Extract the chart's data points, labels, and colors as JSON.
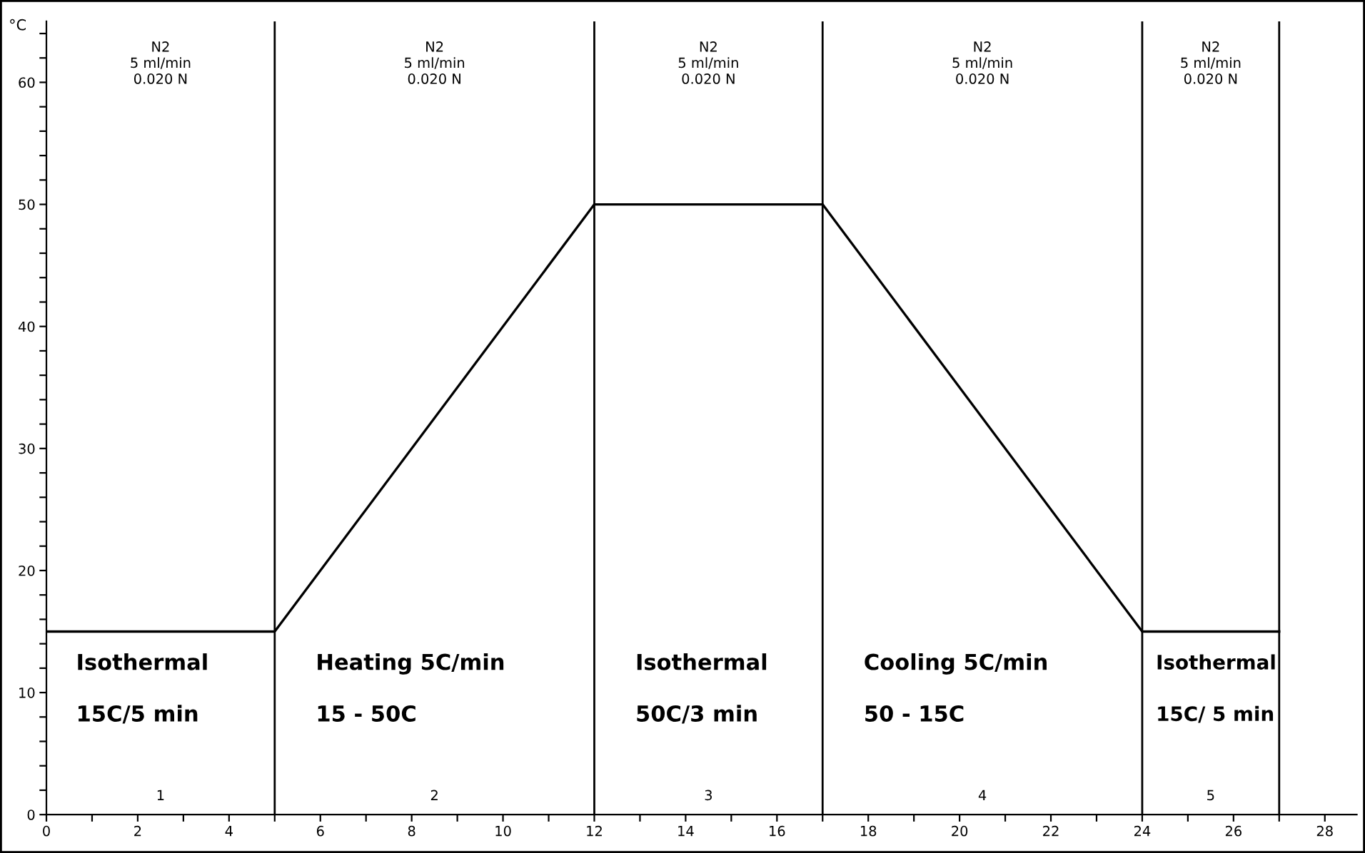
{
  "chart_data": {
    "type": "line",
    "ylabel": "°C",
    "x": [
      0,
      5,
      12,
      17,
      24,
      27
    ],
    "series": [
      {
        "color": "#000000",
        "values": [
          15,
          15,
          50,
          50,
          15,
          15
        ]
      }
    ],
    "xlim": [
      0,
      28.7
    ],
    "ylim": [
      0,
      65
    ],
    "xticks": [
      0,
      {
        "value": 1,
        "label": null
      },
      2,
      {
        "value": 3,
        "label": null
      },
      4,
      {
        "value": 5,
        "label": null
      },
      6,
      {
        "value": 7,
        "label": null
      },
      8,
      {
        "value": 9,
        "label": null
      },
      10,
      {
        "value": 11,
        "label": null
      },
      12,
      {
        "value": 13,
        "label": null
      },
      14,
      {
        "value": 15,
        "label": null
      },
      16,
      {
        "value": 17,
        "label": null
      },
      18,
      {
        "value": 19,
        "label": null
      },
      20,
      {
        "value": 21,
        "label": null
      },
      22,
      {
        "value": 23,
        "label": null
      },
      24,
      {
        "value": 25,
        "label": null
      },
      26,
      {
        "value": 27,
        "label": null
      },
      28
    ],
    "yticks": [
      0,
      {
        "value": 2,
        "label": null
      },
      {
        "value": 4,
        "label": null
      },
      {
        "value": 6,
        "label": null
      },
      {
        "value": 8,
        "label": null
      },
      10,
      {
        "value": 12,
        "label": null
      },
      {
        "value": 14,
        "label": null
      },
      {
        "value": 16,
        "label": null
      },
      {
        "value": 18,
        "label": null
      },
      20,
      {
        "value": 22,
        "label": null
      },
      {
        "value": 24,
        "label": null
      },
      {
        "value": 26,
        "label": null
      },
      {
        "value": 28,
        "label": null
      },
      30,
      {
        "value": 32,
        "label": null
      },
      {
        "value": 34,
        "label": null
      },
      {
        "value": 36,
        "label": null
      },
      {
        "value": 38,
        "label": null
      },
      40,
      {
        "value": 42,
        "label": null
      },
      {
        "value": 44,
        "label": null
      },
      {
        "value": 46,
        "label": null
      },
      {
        "value": 48,
        "label": null
      },
      50,
      {
        "value": 52,
        "label": null
      },
      {
        "value": 54,
        "label": null
      },
      {
        "value": 56,
        "label": null
      },
      {
        "value": 58,
        "label": null
      },
      60,
      {
        "value": 62,
        "label": null
      },
      {
        "value": 64,
        "label": null
      }
    ],
    "ref_lines": [
      {
        "axis": "x",
        "value": 5,
        "color": "#000000"
      },
      {
        "axis": "x",
        "value": 12,
        "color": "#000000"
      },
      {
        "axis": "x",
        "value": 17,
        "color": "#000000"
      },
      {
        "axis": "x",
        "value": 24,
        "color": "#000000"
      },
      {
        "axis": "x",
        "value": 27,
        "color": "#000000"
      }
    ],
    "annotations": [
      "N2\n5 ml/min\n0.020 N",
      "N2\n5 ml/min\n0.020 N",
      "N2\n5 ml/min\n0.020 N",
      "N2\n5 ml/min\n0.020 N",
      "N2\n5 ml/min\n0.020 N",
      "1",
      "2",
      "3",
      "4",
      "5",
      "Isothermal",
      "15C/5 min",
      "Heating 5C/min",
      "15 - 50C",
      "Isothermal",
      "50C/3 min",
      "Cooling 5C/min",
      "50 - 15C",
      "Isothermal",
      "15C/ 5 min"
    ]
  }
}
